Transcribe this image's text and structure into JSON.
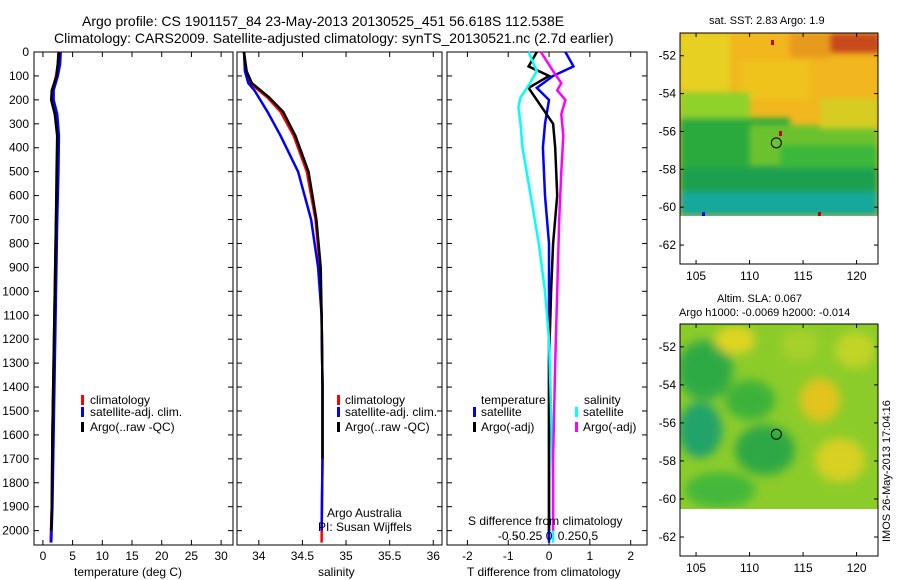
{
  "header": {
    "line1": "Argo profile: CS 1901157_84 23-May-2013 20130525_451 56.618S 112.538E",
    "line2": "Climatology: CARS2009. Satellite-adjusted climatology: synTS_20130521.nc (2.7d earlier)"
  },
  "colors": {
    "climatology": "#ff0000",
    "satellite": "#0000ff",
    "argo": "#000000",
    "sal_satellite": "#00ffff",
    "sal_argo": "#ff00ff"
  },
  "depth_axis": {
    "ticks": [
      0,
      100,
      200,
      300,
      400,
      500,
      600,
      700,
      800,
      900,
      1000,
      1100,
      1200,
      1300,
      1400,
      1500,
      1600,
      1700,
      1800,
      1900,
      2000
    ],
    "range": [
      0,
      2060
    ]
  },
  "chart_data": [
    {
      "type": "line",
      "name": "temperature",
      "xlabel": "temperature (deg C)",
      "xlim": [
        -1.5,
        32
      ],
      "ylim": [
        0,
        2060
      ],
      "xticks": [
        0,
        5,
        10,
        15,
        20,
        25,
        30
      ],
      "xticklabels": [
        "0",
        "5",
        "10",
        "15",
        "20",
        "25",
        "30"
      ],
      "legend": [
        "climatology",
        "satellite-adj. clim.",
        "Argo(..raw -QC)"
      ],
      "series": [
        {
          "name": "climatology",
          "color": "#ff0000",
          "x": [
            2.6,
            2.5,
            2.2,
            1.6,
            1.7,
            2.2,
            2.5,
            2.4,
            2.2,
            2.0,
            1.8,
            1.6,
            1.5,
            1.3
          ],
          "y": [
            0,
            50,
            100,
            160,
            200,
            260,
            350,
            500,
            700,
            1000,
            1300,
            1600,
            1900,
            2050
          ]
        },
        {
          "name": "satellite-adj. clim.",
          "color": "#0000ff",
          "x": [
            3.0,
            2.9,
            2.5,
            1.8,
            1.8,
            2.4,
            2.7,
            2.6,
            2.4,
            2.2,
            2.0,
            1.8,
            1.6,
            1.4
          ],
          "y": [
            0,
            50,
            100,
            160,
            200,
            260,
            350,
            500,
            700,
            1000,
            1300,
            1600,
            1900,
            2050
          ]
        },
        {
          "name": "Argo(..raw -QC)",
          "color": "#000000",
          "x": [
            2.7,
            2.5,
            2.3,
            1.5,
            1.4,
            2.0,
            2.4,
            2.3,
            2.2,
            2.0,
            1.8,
            1.6,
            1.5,
            1.4
          ],
          "y": [
            0,
            50,
            100,
            160,
            200,
            260,
            350,
            500,
            700,
            1000,
            1300,
            1600,
            1900,
            2000
          ]
        }
      ]
    },
    {
      "type": "line",
      "name": "salinity",
      "xlabel": "salinity",
      "xlim": [
        33.75,
        36.1
      ],
      "ylim": [
        0,
        2060
      ],
      "xticks": [
        34,
        34.5,
        35,
        35.5,
        36
      ],
      "xticklabels": [
        "34",
        "34.5",
        "35",
        "35.5",
        "36"
      ],
      "legend": [
        "climatology",
        "satellite-adj. clim.",
        "Argo(..raw -QC)"
      ],
      "annotation": [
        "Argo Australia",
        "PI: Susan Wijffels"
      ],
      "series": [
        {
          "name": "climatology",
          "color": "#ff0000",
          "x": [
            33.83,
            33.85,
            33.9,
            34.0,
            34.1,
            34.25,
            34.4,
            34.55,
            34.65,
            34.7,
            34.72,
            34.73,
            34.73,
            34.72
          ],
          "y": [
            0,
            80,
            130,
            160,
            190,
            250,
            350,
            500,
            700,
            900,
            1100,
            1400,
            1700,
            2050
          ]
        },
        {
          "name": "satellite-adj. clim.",
          "color": "#0000ff",
          "x": [
            33.83,
            33.84,
            33.88,
            33.95,
            34.0,
            34.1,
            34.25,
            34.45,
            34.6,
            34.68,
            34.72,
            34.73,
            34.73,
            34.72
          ],
          "y": [
            0,
            80,
            130,
            160,
            190,
            250,
            350,
            500,
            700,
            900,
            1100,
            1400,
            1700,
            2000
          ]
        },
        {
          "name": "Argo(..raw -QC)",
          "color": "#000000",
          "x": [
            33.83,
            33.86,
            33.92,
            34.02,
            34.12,
            34.28,
            34.42,
            34.57,
            34.66,
            34.71,
            34.72,
            34.73,
            34.73
          ],
          "y": [
            0,
            80,
            130,
            160,
            190,
            250,
            350,
            500,
            700,
            900,
            1100,
            1400,
            1700
          ]
        }
      ]
    },
    {
      "type": "line",
      "name": "difference",
      "xlabel": "T difference from climatology",
      "xlabel_top": "S difference from climatology",
      "xlim": [
        -2.5,
        2.4
      ],
      "ylim": [
        0,
        2060
      ],
      "xticks": [
        -2,
        -1,
        0,
        1,
        2
      ],
      "xticklabels": [
        "-2",
        "-1",
        "0",
        "1",
        "2"
      ],
      "sticks": [
        -0.5,
        -0.25,
        0,
        0.25,
        0.5
      ],
      "sticklabels": [
        "-0.5",
        "-0.25",
        "0",
        "0.25",
        "0.5"
      ],
      "legend_headers": [
        "temperature",
        "salinity"
      ],
      "legend": [
        "satellite",
        "Argo(-adj)",
        "satellite",
        "Argo(-adj)"
      ],
      "series": [
        {
          "name": "T satellite",
          "color": "#0000ff",
          "x": [
            0.4,
            0.6,
            0.1,
            -0.3,
            0.0,
            -0.1,
            -0.15,
            -0.1,
            0.0,
            0.0,
            0.0,
            0.0,
            0.0
          ],
          "y": [
            0,
            60,
            100,
            150,
            200,
            300,
            400,
            600,
            800,
            1000,
            1300,
            1700,
            2050
          ]
        },
        {
          "name": "T Argo(-adj)",
          "color": "#000000",
          "x": [
            -0.3,
            -0.5,
            0.0,
            -0.5,
            -0.3,
            0.1,
            0.15,
            0.2,
            0.1,
            0.05,
            0.0,
            0.0,
            0.0
          ],
          "y": [
            0,
            60,
            100,
            150,
            200,
            300,
            400,
            600,
            800,
            1000,
            1300,
            1700,
            2000
          ]
        },
        {
          "name": "S satellite",
          "color": "#00ffff",
          "x": [
            -0.5,
            -0.3,
            -0.5,
            -0.7,
            -0.75,
            -0.7,
            -0.65,
            -0.55,
            -0.4,
            -0.25,
            -0.1,
            0.0,
            0.05,
            0.1,
            0.1
          ],
          "y": [
            0,
            80,
            140,
            190,
            230,
            300,
            400,
            500,
            650,
            800,
            1000,
            1200,
            1500,
            1800,
            2050
          ]
        },
        {
          "name": "S Argo(-adj)",
          "color": "#ff00ff",
          "x": [
            -0.2,
            0.1,
            0.3,
            0.2,
            0.4,
            0.3,
            0.35,
            0.3,
            0.25,
            0.2,
            0.15,
            0.1,
            0.1
          ],
          "y": [
            0,
            80,
            130,
            160,
            200,
            260,
            350,
            500,
            700,
            1000,
            1300,
            1700,
            2000
          ]
        }
      ]
    },
    {
      "type": "heatmap",
      "name": "sst-map",
      "title": "sat. SST: 2.83 Argo: 1.9",
      "xlim": [
        103.5,
        122
      ],
      "ylim": [
        -63,
        -50.8
      ],
      "xticks": [
        105,
        110,
        115,
        120
      ],
      "xticklabels": [
        "105",
        "110",
        "115",
        "120"
      ],
      "yticks": [
        -52,
        -54,
        -56,
        -58,
        -60,
        -62
      ],
      "yticklabels": [
        "-52",
        "-54",
        "-56",
        "-58",
        "-60",
        "-62"
      ],
      "marker": {
        "lon": 112.5,
        "lat": -56.6
      }
    },
    {
      "type": "heatmap",
      "name": "sla-map",
      "title": "Altim. SLA: 0.067",
      "subtitle": "Argo h1000: -0.0069 h2000: -0.014",
      "xlim": [
        103.5,
        122
      ],
      "ylim": [
        -63,
        -50.8
      ],
      "xticks": [
        105,
        110,
        115,
        120
      ],
      "xticklabels": [
        "105",
        "110",
        "115",
        "120"
      ],
      "yticks": [
        -52,
        -54,
        -56,
        -58,
        -60,
        -62
      ],
      "yticklabels": [
        "-52",
        "-54",
        "-56",
        "-58",
        "-60",
        "-62"
      ],
      "marker": {
        "lon": 112.5,
        "lat": -56.6
      }
    }
  ],
  "footer": {
    "stamp": "IMOS 26-May-2013 17:04:16"
  }
}
